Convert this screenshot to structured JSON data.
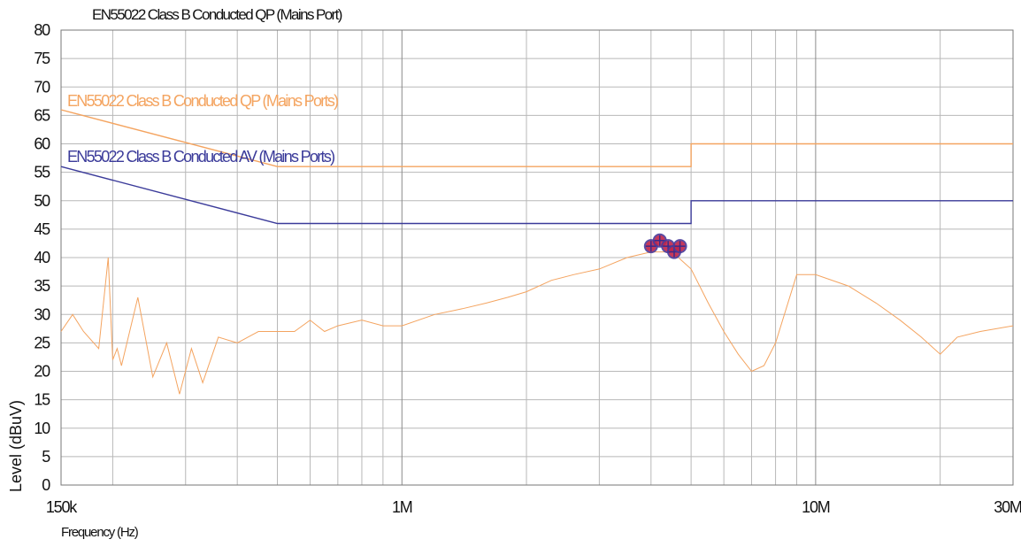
{
  "chart_data": {
    "type": "line",
    "title": "EN55022 Class B Conducted QP (Mains Port)",
    "xlabel": "Frequency (Hz)",
    "ylabel": "Level (dBuV)",
    "x_scale": "log",
    "xlim": [
      150000,
      30000000
    ],
    "ylim": [
      0,
      80
    ],
    "grid": true,
    "x_ticks": [
      {
        "value": 150000,
        "label": "150k"
      },
      {
        "value": 1000000,
        "label": "1M"
      },
      {
        "value": 10000000,
        "label": "10M"
      },
      {
        "value": 30000000,
        "label": "30M"
      }
    ],
    "y_ticks": [
      0,
      5,
      10,
      15,
      20,
      25,
      30,
      35,
      40,
      45,
      50,
      55,
      60,
      65,
      70,
      75,
      80
    ],
    "series": [
      {
        "name": "EN55022 Class B Conducted QP (Mains Ports)",
        "color": "#f4a460",
        "x": [
          150000,
          500000,
          500000,
          5000000,
          5000000,
          30000000
        ],
        "y": [
          66,
          56,
          56,
          56,
          60,
          60
        ]
      },
      {
        "name": "EN55022 Class B Conducted AV (Mains Ports)",
        "color": "#3b3b9a",
        "x": [
          150000,
          500000,
          500000,
          5000000,
          5000000,
          30000000
        ],
        "y": [
          56,
          46,
          46,
          46,
          50,
          50
        ]
      },
      {
        "color": "#f4a460",
        "x": [
          150000,
          160000,
          170000,
          185000,
          195000,
          200000,
          205000,
          210000,
          230000,
          250000,
          270000,
          290000,
          310000,
          330000,
          360000,
          400000,
          450000,
          500000,
          550000,
          600000,
          650000,
          700000,
          800000,
          900000,
          1000000,
          1200000,
          1400000,
          1600000,
          1800000,
          2000000,
          2300000,
          2600000,
          3000000,
          3500000,
          4000000,
          4500000,
          5000000,
          5500000,
          6000000,
          6500000,
          7000000,
          7500000,
          8000000,
          9000000,
          10000000,
          12000000,
          14000000,
          16000000,
          18000000,
          20000000,
          22000000,
          25000000,
          30000000
        ],
        "y": [
          27,
          30,
          27,
          24,
          40,
          22,
          24,
          21,
          33,
          19,
          25,
          16,
          24,
          18,
          26,
          25,
          27,
          27,
          27,
          29,
          27,
          28,
          29,
          28,
          28,
          30,
          31,
          32,
          33,
          34,
          36,
          37,
          38,
          40,
          41,
          41,
          38,
          32,
          27,
          23,
          20,
          21,
          25,
          37,
          37,
          35,
          32,
          29,
          26,
          23,
          26,
          27,
          28
        ]
      }
    ],
    "peak_markers": {
      "x": [
        4000000,
        4200000,
        4400000,
        4550000,
        4700000
      ],
      "y": [
        42,
        43,
        42,
        41,
        42
      ]
    }
  }
}
